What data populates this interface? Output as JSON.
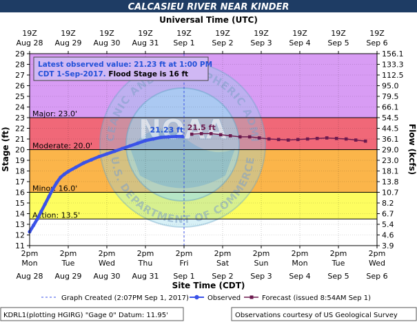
{
  "title": "CALCASIEU RIVER NEAR KINDER",
  "top_axis_label": "Universal Time (UTC)",
  "bottom_axis_label": "Site Time (CDT)",
  "left_axis_label": "Stage (ft)",
  "right_axis_label": "Flow (kcfs)",
  "info_box": {
    "line1": "Latest observed value: 21.23 ft at 1:00 PM",
    "line2_blue": "CDT 1-Sep-2017.",
    "line2_black": " Flood Stage is 16 ft"
  },
  "colors": {
    "title_bg": "#1e3c64",
    "record": "#d89cf4",
    "major": "#f06878",
    "moderate": "#fbb54a",
    "minor": "#fdfd60",
    "action": "#ffffff",
    "observed": "#3a52e8",
    "forecast": "#6b1a4e",
    "label_blue": "#2050d8"
  },
  "chart_data": {
    "type": "line",
    "ylim": [
      11,
      29
    ],
    "yticks": [
      11,
      12,
      13,
      14,
      15,
      16,
      17,
      18,
      19,
      20,
      21,
      22,
      23,
      24,
      25,
      26,
      27,
      28,
      29
    ],
    "flow_tick_labels": [
      "3.9",
      "4.6",
      "5.4",
      "6.7",
      "8.2",
      "10.7",
      "13.8",
      "18.1",
      "23.0",
      "29.0",
      "36.1",
      "44.5",
      "54.5",
      "66.1",
      "79.5",
      "95.0",
      "112.5",
      "133.3",
      "156.1"
    ],
    "x_tick_labels_bottom": [
      {
        "time": "2pm",
        "day": "Mon",
        "date": "Aug 28"
      },
      {
        "time": "2pm",
        "day": "Tue",
        "date": "Aug 29"
      },
      {
        "time": "2pm",
        "day": "Wed",
        "date": "Aug 30"
      },
      {
        "time": "2pm",
        "day": "Thu",
        "date": "Aug 31"
      },
      {
        "time": "2pm",
        "day": "Fri",
        "date": "Sep 1"
      },
      {
        "time": "2pm",
        "day": "Sat",
        "date": "Sep 2"
      },
      {
        "time": "2pm",
        "day": "Sun",
        "date": "Sep 3"
      },
      {
        "time": "2pm",
        "day": "Mon",
        "date": "Sep 4"
      },
      {
        "time": "2pm",
        "day": "Tue",
        "date": "Sep 5"
      },
      {
        "time": "2pm",
        "day": "Wed",
        "date": "Sep 6"
      }
    ],
    "x_tick_labels_top": [
      {
        "time": "19Z",
        "date": "Aug 28"
      },
      {
        "time": "19Z",
        "date": "Aug 29"
      },
      {
        "time": "19Z",
        "date": "Aug 30"
      },
      {
        "time": "19Z",
        "date": "Aug 31"
      },
      {
        "time": "19Z",
        "date": "Sep 1"
      },
      {
        "time": "19Z",
        "date": "Sep 2"
      },
      {
        "time": "19Z",
        "date": "Sep 3"
      },
      {
        "time": "19Z",
        "date": "Sep 4"
      },
      {
        "time": "19Z",
        "date": "Sep 5"
      },
      {
        "time": "19Z",
        "date": "Sep 6"
      }
    ],
    "bands": [
      {
        "name": "Record",
        "from": 23,
        "to": 29,
        "label": ""
      },
      {
        "name": "Major",
        "from": 20,
        "to": 23,
        "label": "Major: 23.0'"
      },
      {
        "name": "Moderate",
        "from": 16,
        "to": 20,
        "label": "Moderate: 20.0'"
      },
      {
        "name": "Minor",
        "from": 13.5,
        "to": 16,
        "label": "Minor: 16.0'"
      },
      {
        "name": "Action",
        "from": 11,
        "to": 13.5,
        "label": "Action: 13.5'"
      }
    ],
    "graph_created_day": 4,
    "series": [
      {
        "name": "Observed",
        "x": [
          0,
          0.1,
          0.2,
          0.3,
          0.4,
          0.5,
          0.6,
          0.7,
          0.8,
          0.9,
          1.0,
          1.2,
          1.4,
          1.6,
          1.8,
          2.0,
          2.2,
          2.4,
          2.6,
          2.8,
          3.0,
          3.2,
          3.4,
          3.6,
          3.8,
          3.96
        ],
        "y": [
          12.3,
          12.9,
          13.5,
          14.2,
          14.9,
          15.6,
          16.3,
          16.9,
          17.4,
          17.7,
          17.95,
          18.35,
          18.75,
          19.05,
          19.35,
          19.6,
          19.85,
          20.1,
          20.35,
          20.6,
          20.85,
          21.0,
          21.15,
          21.2,
          21.23,
          21.23
        ]
      },
      {
        "name": "Forecast (issued 8:54AM Sep 1)",
        "x": [
          4.2,
          4.45,
          4.7,
          4.95,
          5.2,
          5.45,
          5.7,
          5.95,
          6.2,
          6.45,
          6.7,
          6.95,
          7.2,
          7.45,
          7.7,
          7.95,
          8.2,
          8.45,
          8.7
        ],
        "y": [
          21.45,
          21.5,
          21.5,
          21.4,
          21.3,
          21.2,
          21.2,
          21.1,
          21.0,
          20.95,
          20.9,
          20.95,
          21.0,
          21.05,
          21.1,
          21.05,
          21.0,
          20.9,
          20.8
        ]
      }
    ],
    "annotations": [
      {
        "text": "21.23 ft",
        "x": 3.55,
        "y": 21.6,
        "color": "#2050d8"
      },
      {
        "text": "21.5 ft",
        "x": 4.45,
        "y": 21.85,
        "color": "#6b1a4e"
      }
    ]
  },
  "legend": {
    "graph_created": "Graph Created (2:07PM Sep 1, 2017)",
    "observed": "Observed",
    "forecast": "Forecast (issued 8:54AM Sep 1)"
  },
  "footer": {
    "left": "KDRL1(plotting HGIRG) \"Gage 0\" Datum: 11.95'",
    "right": "Observations courtesy of US Geological Survey"
  },
  "watermark": {
    "ring_text": "NATIONAL OCEANIC AND ATMOSPHERIC ADMINISTRATION",
    "ring_text_bottom": "U.S. DEPARTMENT OF COMMERCE",
    "center_text": "NOAA"
  }
}
